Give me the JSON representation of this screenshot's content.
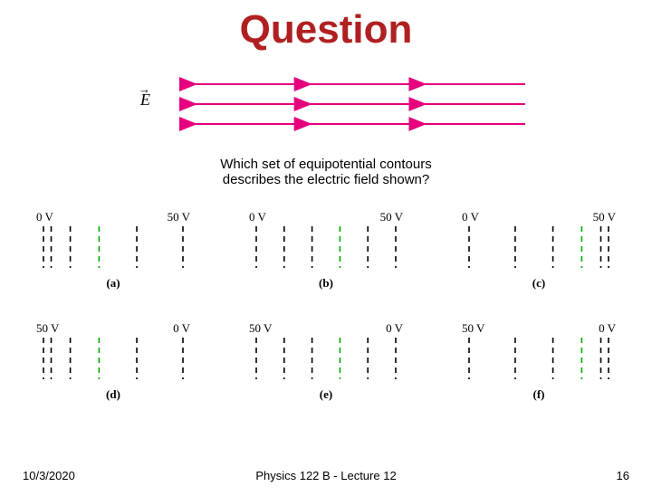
{
  "title": "Question",
  "field": {
    "arrow_color": "#e6007e",
    "rows": 3,
    "segments_per_row": 3
  },
  "e_symbol": "E",
  "prompt_line1": "Which set of equipotential contours",
  "prompt_line2": "describes the electric field shown?",
  "options": {
    "dash_color": "#000000",
    "dash_highlight": "#00aa00",
    "label_font_size": 13,
    "items": [
      {
        "id": "a",
        "left_v": "0 V",
        "right_v": "50 V",
        "pattern": "dense_left"
      },
      {
        "id": "b",
        "left_v": "0 V",
        "right_v": "50 V",
        "pattern": "even"
      },
      {
        "id": "c",
        "left_v": "0 V",
        "right_v": "50 V",
        "pattern": "dense_right"
      },
      {
        "id": "d",
        "left_v": "50 V",
        "right_v": "0 V",
        "pattern": "dense_left"
      },
      {
        "id": "e",
        "left_v": "50 V",
        "right_v": "0 V",
        "pattern": "even"
      },
      {
        "id": "f",
        "left_v": "50 V",
        "right_v": "0 V",
        "pattern": "dense_right"
      }
    ]
  },
  "footer": {
    "date": "10/3/2020",
    "center": "Physics 122 B  -  Lecture 12",
    "page": "16"
  }
}
